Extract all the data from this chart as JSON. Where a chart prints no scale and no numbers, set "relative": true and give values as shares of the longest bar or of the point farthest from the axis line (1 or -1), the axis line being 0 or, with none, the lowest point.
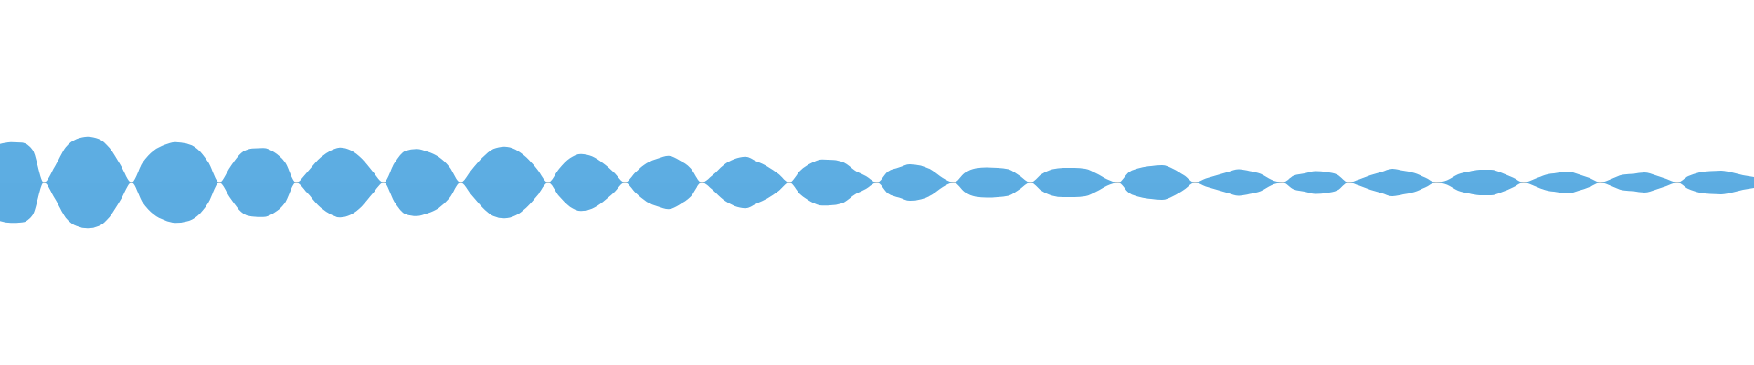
{
  "chart_data": {
    "type": "area",
    "relative": true,
    "categories": [
      null,
      null,
      null,
      null,
      null,
      null,
      null,
      null,
      null,
      null,
      null,
      null,
      null,
      null,
      null,
      null,
      null,
      null,
      null,
      null,
      null,
      null,
      null,
      null,
      null,
      null,
      null,
      null,
      null,
      null,
      null,
      null,
      null,
      null,
      null,
      null,
      null,
      null,
      null,
      null,
      null,
      null,
      null,
      null,
      null,
      null,
      null,
      null,
      null,
      null,
      null,
      null,
      null,
      null,
      null,
      null,
      null,
      null,
      null,
      null,
      null,
      null,
      null,
      null,
      null,
      null,
      null,
      null,
      null,
      null,
      null,
      null,
      null,
      null,
      null,
      null,
      null,
      null,
      null,
      null,
      null,
      null,
      null,
      null,
      null,
      null,
      null,
      null,
      null,
      null,
      null,
      null,
      null,
      null,
      null,
      null,
      null,
      null,
      null,
      null,
      null,
      null,
      null,
      null,
      null,
      null,
      null,
      null,
      null,
      null,
      null,
      null,
      null,
      null,
      null,
      null,
      null,
      null,
      null,
      null,
      null,
      null,
      null,
      null,
      null,
      null,
      null,
      null,
      null,
      null,
      null,
      null,
      null,
      null,
      null,
      null,
      null,
      null,
      null,
      null,
      null,
      null,
      null,
      null,
      null,
      null,
      null,
      null,
      null,
      null,
      null,
      null,
      null,
      null,
      null,
      null,
      null,
      null,
      null,
      null,
      null
    ],
    "series": [
      {
        "color": "#5dade2",
        "values": [
          0.84,
          0.88,
          0.87,
          0.7,
          0,
          0.35,
          0.77,
          0.95,
          1.0,
          0.95,
          0.75,
          0.38,
          0,
          0.43,
          0.69,
          0.82,
          0.88,
          0.85,
          0.73,
          0.44,
          0,
          0.34,
          0.64,
          0.74,
          0.75,
          0.66,
          0.44,
          0,
          0.22,
          0.49,
          0.67,
          0.76,
          0.7,
          0.52,
          0.24,
          0,
          0.43,
          0.69,
          0.73,
          0.67,
          0.56,
          0.34,
          0,
          0.27,
          0.54,
          0.73,
          0.78,
          0.72,
          0.55,
          0.29,
          0,
          0.3,
          0.53,
          0.62,
          0.57,
          0.42,
          0.22,
          0,
          0.23,
          0.42,
          0.52,
          0.58,
          0.48,
          0.31,
          0,
          0.16,
          0.38,
          0.51,
          0.56,
          0.46,
          0.35,
          0.19,
          0,
          0.26,
          0.42,
          0.5,
          0.49,
          0.43,
          0.26,
          0.14,
          0,
          0.24,
          0.33,
          0.4,
          0.37,
          0.27,
          0.1,
          0,
          0.21,
          0.31,
          0.33,
          0.32,
          0.29,
          0.15,
          0,
          0.18,
          0.29,
          0.32,
          0.32,
          0.3,
          0.2,
          0.07,
          0,
          0.23,
          0.32,
          0.36,
          0.38,
          0.3,
          0.16,
          0,
          0.09,
          0.16,
          0.23,
          0.29,
          0.25,
          0.19,
          0.06,
          0,
          0.15,
          0.2,
          0.25,
          0.23,
          0.17,
          0,
          0.07,
          0.16,
          0.23,
          0.3,
          0.26,
          0.21,
          0.11,
          0,
          0.05,
          0.18,
          0.24,
          0.28,
          0.28,
          0.21,
          0.11,
          0,
          0.08,
          0.17,
          0.21,
          0.24,
          0.18,
          0.1,
          0,
          0.08,
          0.17,
          0.19,
          0.22,
          0.16,
          0.08,
          0,
          0.14,
          0.22,
          0.25,
          0.26,
          0.22,
          0.16,
          0.12
        ]
      },
      {
        "color": "#5cace1",
        "values": [
          -0.84,
          -0.88,
          -0.87,
          -0.7,
          0,
          -0.35,
          -0.77,
          -0.95,
          -1.0,
          -0.95,
          -0.75,
          -0.38,
          0,
          -0.43,
          -0.69,
          -0.82,
          -0.88,
          -0.85,
          -0.73,
          -0.44,
          0,
          -0.34,
          -0.64,
          -0.74,
          -0.75,
          -0.66,
          -0.44,
          0,
          -0.22,
          -0.49,
          -0.67,
          -0.76,
          -0.7,
          -0.52,
          -0.24,
          0,
          -0.43,
          -0.69,
          -0.73,
          -0.67,
          -0.56,
          -0.34,
          0,
          -0.27,
          -0.54,
          -0.73,
          -0.78,
          -0.72,
          -0.55,
          -0.29,
          0,
          -0.3,
          -0.53,
          -0.62,
          -0.57,
          -0.42,
          -0.22,
          0,
          -0.23,
          -0.42,
          -0.52,
          -0.58,
          -0.48,
          -0.31,
          0,
          -0.16,
          -0.38,
          -0.51,
          -0.56,
          -0.46,
          -0.35,
          -0.19,
          0,
          -0.26,
          -0.42,
          -0.5,
          -0.49,
          -0.43,
          -0.26,
          -0.14,
          0,
          -0.24,
          -0.33,
          -0.4,
          -0.37,
          -0.27,
          -0.1,
          0,
          -0.21,
          -0.31,
          -0.33,
          -0.32,
          -0.29,
          -0.15,
          0,
          -0.18,
          -0.29,
          -0.32,
          -0.32,
          -0.3,
          -0.2,
          -0.07,
          0,
          -0.23,
          -0.32,
          -0.36,
          -0.38,
          -0.3,
          -0.16,
          0,
          -0.09,
          -0.16,
          -0.23,
          -0.29,
          -0.25,
          -0.19,
          -0.06,
          0,
          -0.15,
          -0.2,
          -0.25,
          -0.23,
          -0.17,
          0,
          -0.07,
          -0.16,
          -0.23,
          -0.3,
          -0.26,
          -0.21,
          -0.11,
          0,
          -0.05,
          -0.18,
          -0.24,
          -0.28,
          -0.28,
          -0.21,
          -0.11,
          0,
          -0.08,
          -0.17,
          -0.21,
          -0.24,
          -0.18,
          -0.1,
          0,
          -0.08,
          -0.17,
          -0.19,
          -0.22,
          -0.16,
          -0.08,
          0,
          -0.14,
          -0.22,
          -0.25,
          -0.26,
          -0.22,
          -0.16,
          -0.12
        ]
      }
    ]
  }
}
